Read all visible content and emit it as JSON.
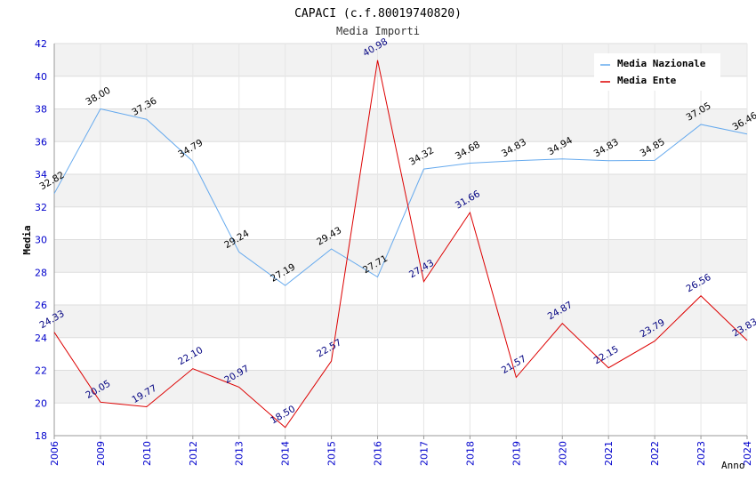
{
  "chart_data": {
    "type": "line",
    "title": "CAPACI (c.f.80019740820)",
    "subtitle": "Media Importi",
    "ylabel": "Media",
    "xlabel": "Anno",
    "ylim": [
      18,
      42
    ],
    "yticks": [
      18,
      20,
      22,
      24,
      26,
      28,
      30,
      32,
      34,
      36,
      38,
      40,
      42
    ],
    "x": [
      "2006",
      "2009",
      "2010",
      "2012",
      "2013",
      "2014",
      "2015",
      "2016",
      "2017",
      "2018",
      "2019",
      "2020",
      "2021",
      "2022",
      "2023",
      "2024"
    ],
    "grid": true,
    "legend_position": "top-right",
    "series": [
      {
        "name": "Media Nazionale",
        "color": "#66aaee",
        "values": [
          32.82,
          38.0,
          37.36,
          34.79,
          29.24,
          27.19,
          29.43,
          27.71,
          34.32,
          34.68,
          34.83,
          34.94,
          34.83,
          34.85,
          37.05,
          36.46
        ],
        "labels": [
          "32.82",
          "38.00",
          "37.36",
          "34.79",
          "29.24",
          "27.19",
          "29.43",
          "27.71",
          "34.32",
          "34.68",
          "34.83",
          "34.94",
          "34.83",
          "34.85",
          "37.05",
          "36.46"
        ]
      },
      {
        "name": "Media Ente",
        "color": "#dd0000",
        "values": [
          24.33,
          20.05,
          19.77,
          22.1,
          20.97,
          18.5,
          22.57,
          40.98,
          27.43,
          31.66,
          21.57,
          24.87,
          22.15,
          23.79,
          26.56,
          23.83
        ],
        "labels": [
          "24.33",
          "20.05",
          "19.77",
          "22.10",
          "20.97",
          "18.50",
          "22.57",
          "40.98",
          "27.43",
          "31.66",
          "21.57",
          "24.87",
          "22.15",
          "23.79",
          "26.56",
          "23.83"
        ]
      }
    ]
  }
}
